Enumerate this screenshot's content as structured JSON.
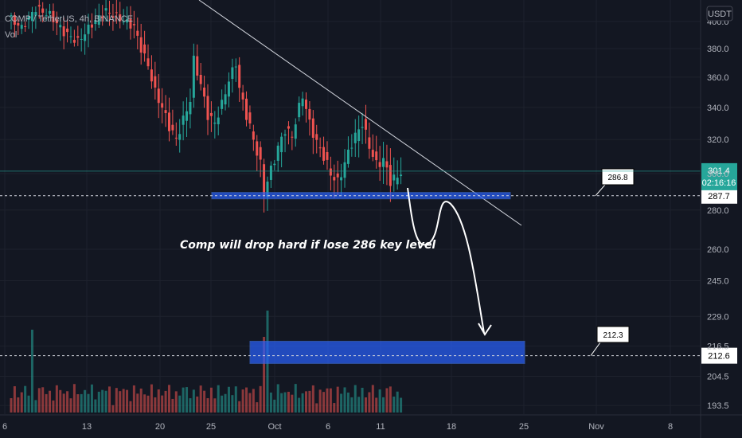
{
  "header": {
    "symbol_line": "COMP / TetherUS, 4h, BINANCE",
    "volume_label": "Vol"
  },
  "currency": "USDT",
  "price_label": {
    "price": "301.4",
    "countdown": "02:16:16"
  },
  "colors": {
    "background": "#131722",
    "up": "#26a69a",
    "down": "#ef5350",
    "zone": "#2962ff",
    "grid": "#1e222d",
    "text": "#b2b5be"
  },
  "chart_data": {
    "type": "candlestick",
    "y_axis": {
      "ticks": [
        400.0,
        380.0,
        360.0,
        340.0,
        320.0,
        300.0,
        280.0,
        260.0,
        245.0,
        229.0,
        216.5,
        204.5,
        193.5
      ],
      "tick_labels": [
        "400.0",
        "380.0",
        "360.0",
        "340.0",
        "320.0",
        "300.0",
        "280.0",
        "260.0",
        "245.0",
        "229.0",
        "216.5",
        "204.5",
        "193.5"
      ],
      "scale": "log"
    },
    "x_axis": {
      "tick_labels": [
        "6",
        "13",
        "20",
        "25",
        "Oct",
        "6",
        "11",
        "18",
        "25",
        "Nov",
        "8"
      ]
    },
    "last_price": 301.4,
    "price_path": [
      [
        0,
        404
      ],
      [
        4,
        395
      ],
      [
        8,
        410
      ],
      [
        12,
        405
      ],
      [
        16,
        392
      ],
      [
        20,
        385
      ],
      [
        24,
        398
      ],
      [
        28,
        408
      ],
      [
        32,
        402
      ],
      [
        36,
        396
      ],
      [
        38,
        380
      ],
      [
        40,
        368
      ],
      [
        42,
        350
      ],
      [
        44,
        340
      ],
      [
        46,
        328
      ],
      [
        48,
        320
      ],
      [
        50,
        332
      ],
      [
        52,
        345
      ],
      [
        53,
        372
      ],
      [
        55,
        355
      ],
      [
        57,
        335
      ],
      [
        59,
        330
      ],
      [
        61,
        342
      ],
      [
        63,
        358
      ],
      [
        65,
        370
      ],
      [
        66,
        352
      ],
      [
        68,
        335
      ],
      [
        70,
        320
      ],
      [
        72,
        305
      ],
      [
        73,
        290
      ],
      [
        75,
        302
      ],
      [
        77,
        315
      ],
      [
        79,
        326
      ],
      [
        81,
        322
      ],
      [
        83,
        340
      ],
      [
        84,
        348
      ],
      [
        86,
        330
      ],
      [
        88,
        318
      ],
      [
        90,
        310
      ],
      [
        92,
        300
      ],
      [
        94,
        295
      ],
      [
        96,
        306
      ],
      [
        98,
        318
      ],
      [
        100,
        326
      ],
      [
        101,
        330
      ],
      [
        103,
        316
      ],
      [
        105,
        305
      ],
      [
        107,
        308
      ],
      [
        109,
        296
      ],
      [
        111,
        298
      ],
      [
        112,
        301.4
      ]
    ],
    "volume_spike_index": 73,
    "trendline": {
      "from": {
        "day": 20,
        "price": 430
      },
      "to": {
        "day": 22.6,
        "price": 281
      }
    },
    "support_zone": {
      "label": "286 key level",
      "low": 286.0,
      "high": 289.5,
      "from_day": 18.3,
      "to_day": 25.7
    },
    "target_zone": {
      "low": 209.5,
      "high": 218.5,
      "from_day": 35.5,
      "to_day": 47.5
    },
    "horizontal_levels": [
      {
        "price": 287.7,
        "label": "287.7",
        "callout": "286.8"
      },
      {
        "price": 212.6,
        "label": "212.6",
        "callout": "212.3"
      }
    ],
    "projection_path": [
      {
        "day": 14.5,
        "price": 288
      },
      {
        "day": 15.5,
        "price": 262
      },
      {
        "day": 16.3,
        "price": 284
      },
      {
        "day": 17.6,
        "price": 225
      }
    ],
    "annotation": "Comp will drop hard if lose 286 key level"
  }
}
